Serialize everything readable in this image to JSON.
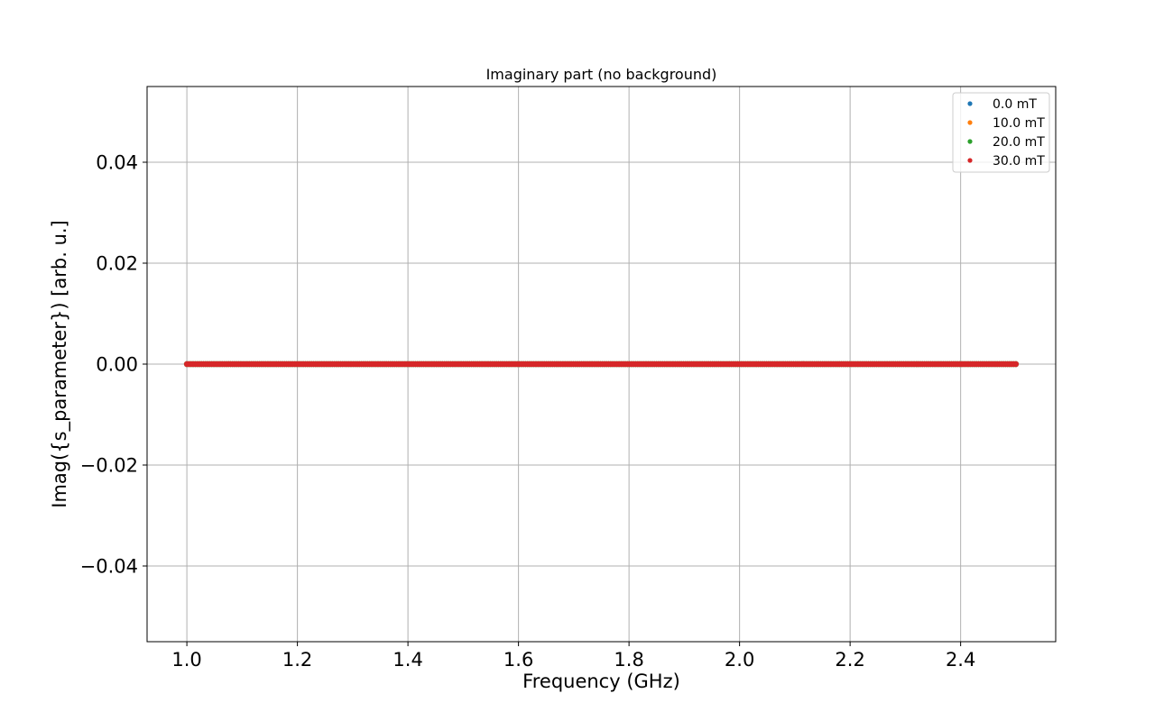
{
  "chart_data": {
    "type": "scatter",
    "title": "Imaginary part (no background)",
    "xlabel": "Frequency (GHz)",
    "ylabel": "Imag({s_parameter}) [arb. u.]",
    "xlim": [
      0.928,
      2.572
    ],
    "ylim": [
      -0.055,
      0.055
    ],
    "grid": true,
    "legend_position": "top-right",
    "x_ticks": [
      {
        "value": 1.0,
        "label": "1.0"
      },
      {
        "value": 1.2,
        "label": "1.2"
      },
      {
        "value": 1.4,
        "label": "1.4"
      },
      {
        "value": 1.6,
        "label": "1.6"
      },
      {
        "value": 1.8,
        "label": "1.8"
      },
      {
        "value": 2.0,
        "label": "2.0"
      },
      {
        "value": 2.2,
        "label": "2.2"
      },
      {
        "value": 2.4,
        "label": "2.4"
      }
    ],
    "y_ticks": [
      {
        "value": 0.04,
        "label": "0.04"
      },
      {
        "value": 0.02,
        "label": "0.02"
      },
      {
        "value": 0.0,
        "label": "0.00"
      },
      {
        "value": -0.02,
        "label": "−0.02"
      },
      {
        "value": -0.04,
        "label": "−0.04"
      }
    ],
    "x_range": [
      1.0,
      2.5
    ],
    "series": [
      {
        "name": "0.0 mT",
        "color": "#1f77b4",
        "y": 0.0
      },
      {
        "name": "10.0 mT",
        "color": "#ff7f0e",
        "y": 0.0
      },
      {
        "name": "20.0 mT",
        "color": "#2ca02c",
        "y": 0.0
      },
      {
        "name": "30.0 mT",
        "color": "#d62728",
        "y": 0.0
      }
    ]
  }
}
